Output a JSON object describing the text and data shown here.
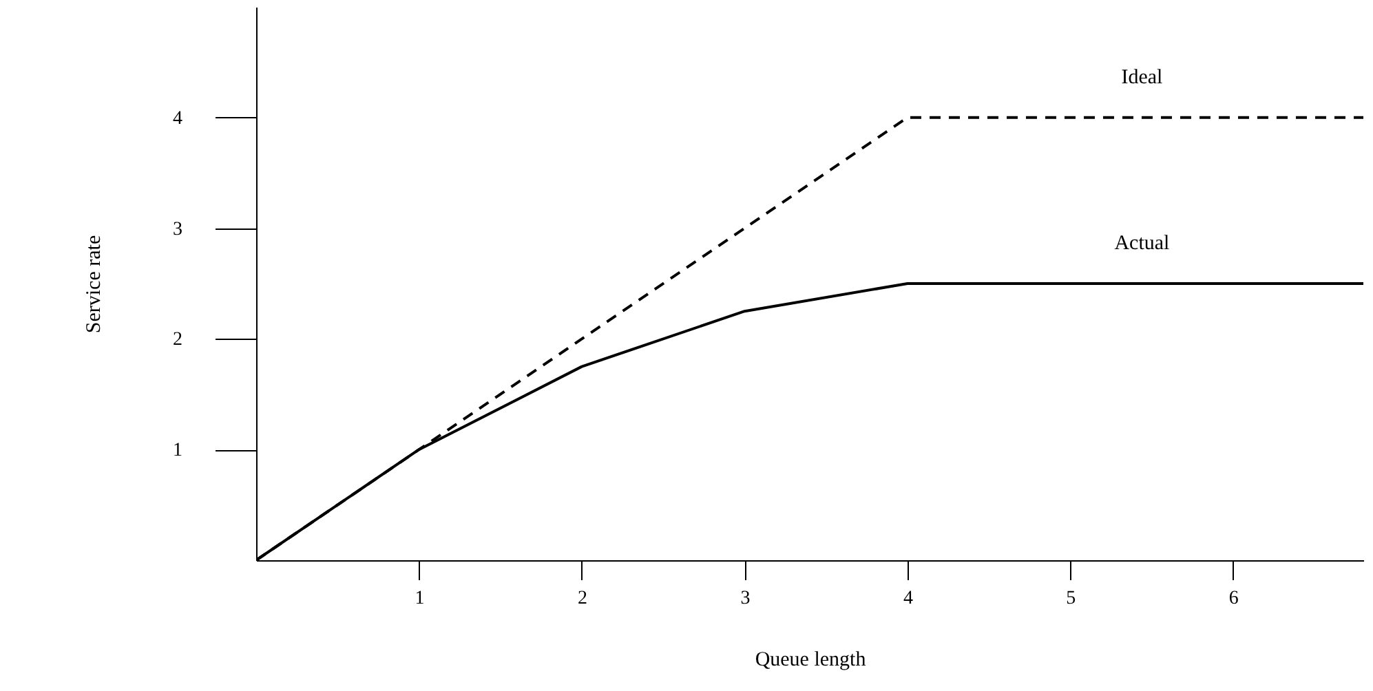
{
  "chart_data": {
    "type": "line",
    "xlabel": "Queue length",
    "ylabel": "Service rate",
    "xlim": [
      0,
      6.8
    ],
    "ylim": [
      0,
      5
    ],
    "xticks": [
      1,
      2,
      3,
      4,
      5,
      6
    ],
    "yticks": [
      1,
      2,
      3,
      4
    ],
    "grid": false,
    "marker": "none",
    "series": [
      {
        "name": "Ideal",
        "color": "#000000",
        "line_style": "dashed",
        "x": [
          0,
          1,
          4,
          6.8
        ],
        "values": [
          0,
          1,
          4,
          4
        ]
      },
      {
        "name": "Actual",
        "color": "#000000",
        "line_style": "solid",
        "x": [
          0,
          1,
          2,
          3,
          4,
          6.8
        ],
        "values": [
          0,
          1,
          1.75,
          2.25,
          2.5,
          2.5
        ]
      }
    ]
  }
}
